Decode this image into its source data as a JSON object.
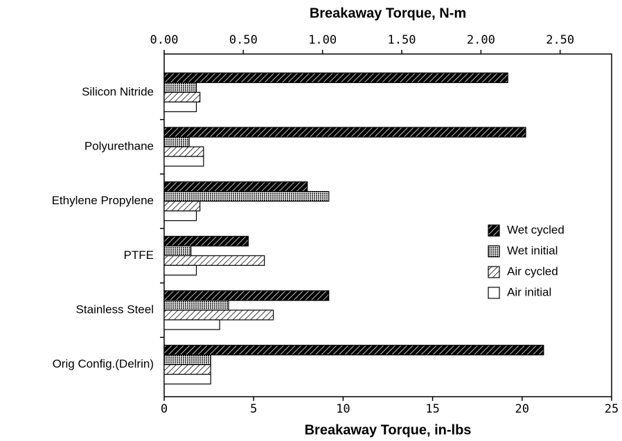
{
  "chart_data": {
    "type": "barh",
    "xlabel": "Breakaway Torque, in-lbs",
    "x2label": "Breakaway Torque, N-m",
    "categories": [
      "Silicon Nitride",
      "Polyurethane",
      "Ethylene Propylene",
      "PTFE",
      "Stainless Steel",
      "Orig Config.(Delrin)"
    ],
    "series": [
      {
        "name": "Wet cycled",
        "color": "#000000",
        "pattern": "dense-hatch",
        "values": [
          19.2,
          20.2,
          8.0,
          4.7,
          9.2,
          21.2
        ]
      },
      {
        "name": "Wet initial",
        "color": "#000000",
        "pattern": "crosshatch",
        "values": [
          1.8,
          1.4,
          9.2,
          1.5,
          3.6,
          2.6
        ]
      },
      {
        "name": "Air cycled",
        "color": "#000000",
        "pattern": "light-hatch",
        "values": [
          2.0,
          2.2,
          2.0,
          5.6,
          6.1,
          2.6
        ]
      },
      {
        "name": "Air initial",
        "color": "#000000",
        "pattern": "none",
        "values": [
          1.8,
          2.2,
          1.8,
          1.8,
          3.1,
          2.6
        ]
      }
    ],
    "xlim": [
      0,
      25
    ],
    "xticks": [
      0,
      5,
      10,
      15,
      20,
      25
    ],
    "x2lim": [
      0,
      2.825
    ],
    "x2ticks": [
      {
        "value": 0,
        "label": "0.00"
      },
      {
        "value": 0.5,
        "label": "0.50"
      },
      {
        "value": 1,
        "label": "1.00"
      },
      {
        "value": 1.5,
        "label": "1.50"
      },
      {
        "value": 2,
        "label": "2.00"
      },
      {
        "value": 2.5,
        "label": "2.50"
      }
    ],
    "legend": "center right"
  }
}
